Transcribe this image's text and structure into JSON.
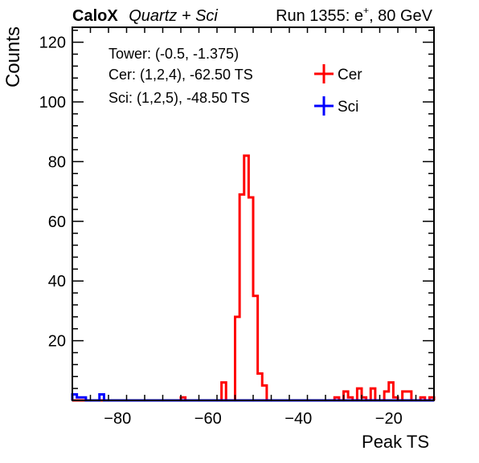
{
  "chart_data": {
    "type": "histogram",
    "title_parts": {
      "experiment": "CaloX",
      "subtitle": "Quartz + Sci",
      "run_prefix": "Run 1355: e",
      "run_superscript": "+",
      "run_suffix": ", 80 GeV"
    },
    "xlabel": "Peak TS",
    "ylabel": "Counts",
    "xlim": [
      -90,
      -10
    ],
    "ylim": [
      0,
      125
    ],
    "xticks": [
      -80,
      -60,
      -40,
      -20
    ],
    "xtick_labels": [
      "−80",
      "−60",
      "−40",
      "−20"
    ],
    "yticks": [
      20,
      40,
      60,
      80,
      100,
      120
    ],
    "ytick_labels": [
      "20",
      "40",
      "60",
      "80",
      "100",
      "120"
    ],
    "grid": false,
    "annotations": [
      "Tower: (-0.5, -1.375)",
      "Cer: (1,2,4), -62.50 TS",
      "Sci: (1,2,5), -48.50 TS"
    ],
    "legend": {
      "position": "top-right",
      "entries": [
        {
          "label": "Cer",
          "color": "#ff0000"
        },
        {
          "label": "Sci",
          "color": "#0000ff"
        }
      ]
    },
    "bin_width": 1,
    "x_start": -90,
    "series": [
      {
        "name": "Cer",
        "color": "#ff0000",
        "values": [
          0,
          0,
          0,
          0,
          0,
          0,
          0,
          0,
          0,
          0,
          0,
          0,
          0,
          0,
          0,
          0,
          0,
          0,
          0,
          0,
          0,
          0,
          0,
          0,
          1,
          0,
          0,
          0,
          0,
          0,
          0,
          0,
          0,
          6,
          0,
          0,
          28,
          69,
          82,
          68,
          35,
          9,
          5,
          0,
          0,
          0,
          0,
          0,
          0,
          0,
          0,
          0,
          0,
          0,
          0,
          0,
          0,
          0,
          1,
          0,
          3,
          1,
          0,
          4,
          1,
          0,
          4,
          0,
          0,
          3,
          6,
          1,
          0,
          3,
          3,
          0,
          0,
          1,
          0,
          1
        ]
      },
      {
        "name": "Sci",
        "color": "#0000ff",
        "values": [
          2,
          1,
          1,
          0,
          0,
          0,
          2,
          0,
          0,
          0,
          0,
          0,
          0,
          0,
          0,
          0,
          0,
          0,
          0,
          0,
          0,
          0,
          0,
          0,
          0,
          0,
          0,
          0,
          0,
          0,
          0,
          0,
          0,
          0,
          0,
          0,
          0,
          0,
          0,
          0,
          0,
          0,
          0,
          0,
          0,
          0,
          0,
          0,
          0,
          0,
          0,
          0,
          0,
          0,
          0,
          0,
          0,
          0,
          0,
          0,
          0,
          0,
          0,
          0,
          0,
          0,
          0,
          0,
          0,
          0,
          0,
          0,
          0,
          0,
          0,
          0,
          0,
          0,
          0,
          0
        ]
      }
    ]
  }
}
